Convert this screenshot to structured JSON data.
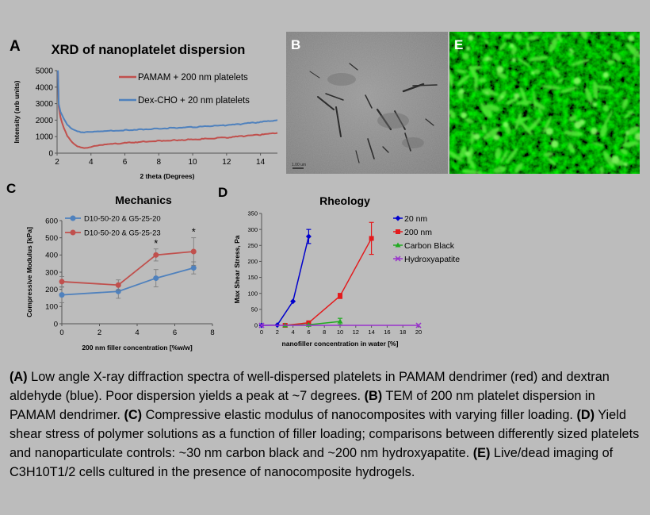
{
  "panels": {
    "A": {
      "letter": "A"
    },
    "B": {
      "letter": "B",
      "scale_bar_label": "1.00 um"
    },
    "C": {
      "letter": "C"
    },
    "D": {
      "letter": "D"
    },
    "E": {
      "letter": "E"
    }
  },
  "chart_data": [
    {
      "id": "A",
      "type": "line",
      "title": "XRD of nanoplatelet dispersion",
      "xlabel": "2 theta (Degrees)",
      "ylabel": "Intensity (arb units)",
      "xlim": [
        2,
        15
      ],
      "ylim": [
        0,
        5000
      ],
      "xticks": [
        2,
        4,
        6,
        8,
        10,
        12,
        14
      ],
      "yticks": [
        0,
        1000,
        2000,
        3000,
        4000,
        5000
      ],
      "legend_position": "top-right",
      "grid": false,
      "series": [
        {
          "name": "PAMAM + 200 nm platelets",
          "color": "#c0504d",
          "x": [
            2.05,
            2.1,
            2.2,
            2.4,
            2.6,
            2.8,
            3.0,
            3.2,
            3.4,
            3.6,
            3.8,
            4.0,
            4.5,
            5,
            6,
            7,
            8,
            9,
            10,
            11,
            12,
            13,
            14,
            15
          ],
          "y": [
            4900,
            2800,
            2150,
            1500,
            1050,
            750,
            560,
            430,
            360,
            330,
            340,
            380,
            460,
            530,
            620,
            690,
            740,
            790,
            830,
            880,
            950,
            1030,
            1110,
            1230
          ]
        },
        {
          "name": "Dex-CHO + 20 nm platelets",
          "color": "#4f81bd",
          "x": [
            2.05,
            2.1,
            2.2,
            2.4,
            2.6,
            2.8,
            3.0,
            3.2,
            3.4,
            3.6,
            3.8,
            4.0,
            4.5,
            5,
            6,
            7,
            8,
            9,
            10,
            11,
            12,
            13,
            14,
            15
          ],
          "y": [
            5000,
            2950,
            2500,
            2050,
            1750,
            1550,
            1420,
            1340,
            1290,
            1270,
            1270,
            1280,
            1310,
            1340,
            1390,
            1440,
            1490,
            1530,
            1580,
            1630,
            1690,
            1780,
            1880,
            2010
          ]
        }
      ]
    },
    {
      "id": "C",
      "type": "line",
      "title": "Mechanics",
      "xlabel": "200 nm filler concentration [%w/w]",
      "ylabel": "Compressive Modulus [kPa]",
      "xlim": [
        0,
        8
      ],
      "ylim": [
        0,
        600
      ],
      "xticks": [
        0,
        2,
        4,
        6,
        8
      ],
      "yticks": [
        0,
        100,
        200,
        300,
        400,
        500,
        600
      ],
      "legend_position": "top-left",
      "series": [
        {
          "name": "D10-50-20 & G5-25-20",
          "color": "#4f81bd",
          "x": [
            0,
            3,
            5,
            7
          ],
          "y": [
            168,
            188,
            265,
            325
          ],
          "err": [
            45,
            40,
            50,
            35
          ]
        },
        {
          "name": "D10-50-20 & G5-25-23",
          "color": "#c0504d",
          "x": [
            0,
            3,
            5,
            7
          ],
          "y": [
            245,
            225,
            400,
            420
          ],
          "err": [
            30,
            30,
            35,
            80
          ]
        }
      ],
      "annotations": [
        {
          "text": "*",
          "x": 5
        },
        {
          "text": "*",
          "x": 7
        }
      ]
    },
    {
      "id": "D",
      "type": "line",
      "title": "Rheology",
      "xlabel": "nanofiller concentration in water [%]",
      "ylabel": "Max Shear Stress, Pa",
      "xlim": [
        0,
        20
      ],
      "ylim": [
        0,
        350
      ],
      "xticks": [
        0,
        2,
        4,
        6,
        8,
        10,
        12,
        14,
        16,
        18,
        20
      ],
      "yticks": [
        0,
        50,
        100,
        150,
        200,
        250,
        300,
        350
      ],
      "legend_position": "top-right",
      "series": [
        {
          "name": "20 nm",
          "color": "#0000cc",
          "marker": "diamond",
          "x": [
            0,
            2,
            4,
            6
          ],
          "y": [
            0,
            1,
            75,
            278
          ],
          "err": [
            0,
            0,
            0,
            22
          ]
        },
        {
          "name": "200 nm",
          "color": "#e31a1c",
          "marker": "square",
          "x": [
            3,
            6,
            10,
            14
          ],
          "y": [
            0,
            8,
            92,
            272
          ],
          "err": [
            0,
            3,
            8,
            50
          ]
        },
        {
          "name": "Carbon Black",
          "color": "#22aa22",
          "marker": "triangle",
          "x": [
            3,
            6,
            10
          ],
          "y": [
            0,
            2,
            12
          ],
          "err": [
            0,
            0,
            10
          ]
        },
        {
          "name": "Hydroxyapatite",
          "color": "#9933cc",
          "marker": "x",
          "x": [
            0,
            20
          ],
          "y": [
            0,
            0
          ],
          "err": [
            0,
            0
          ]
        }
      ]
    }
  ],
  "caption": {
    "parts": [
      {
        "b": "(A)",
        "t": " Low angle X-ray diffraction spectra of well-dispersed platelets in PAMAM dendrimer (red) and dextran aldehyde (blue).  Poor dispersion yields a peak at ~7 degrees. "
      },
      {
        "b": "(B)",
        "t": " TEM of 200 nm platelet dispersion in PAMAM dendrimer. "
      },
      {
        "b": "(C)",
        "t": " Compressive elastic modulus of nanocomposites with varying filler loading. "
      },
      {
        "b": "(D)",
        "t": " Yield shear stress of polymer solutions as a function of filler loading; comparisons between differently sized platelets and nanoparticulate controls: ~30 nm carbon black and ~200 nm hydroxyapatite. "
      },
      {
        "b": "(E)",
        "t": " Live/dead imaging of C3H10T1/2 cells cultured in the presence of nanocomposite hydrogels."
      }
    ]
  }
}
